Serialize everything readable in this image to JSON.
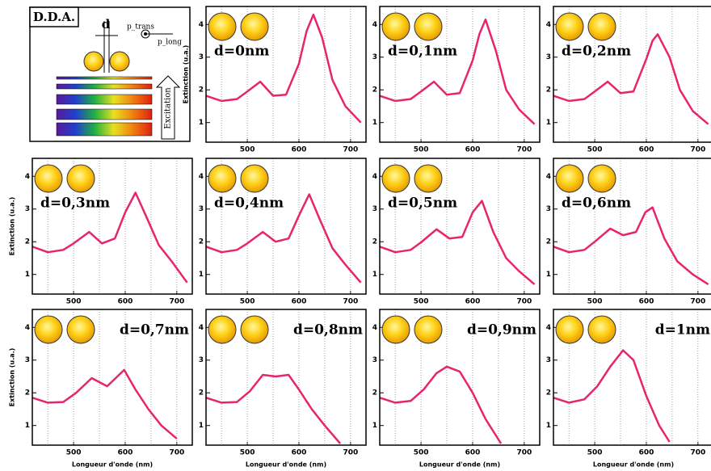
{
  "diagram": {
    "title": "D.D.A.",
    "gap_label": "d",
    "p_trans": "p_trans",
    "p_long": "p_long",
    "excitation": "Excitation"
  },
  "chart_data": [
    {
      "type": "line",
      "annotation": "d=0nm",
      "ylabel": "Extinction (u.a.)",
      "color": "#e8246e",
      "x": [
        420,
        450,
        480,
        500,
        525,
        550,
        575,
        600,
        615,
        628,
        645,
        665,
        690,
        720
      ],
      "values": [
        1.82,
        1.66,
        1.72,
        1.95,
        2.25,
        1.82,
        1.85,
        2.8,
        3.8,
        4.3,
        3.6,
        2.3,
        1.5,
        1.0
      ],
      "xlim": [
        420,
        730
      ],
      "ylim": [
        0.4,
        4.55
      ],
      "xticks": [
        500,
        600,
        700
      ],
      "yticks": [
        1,
        2,
        3,
        4
      ],
      "xgrid": [
        450,
        550,
        650
      ]
    },
    {
      "type": "line",
      "annotation": "d=0,1nm",
      "color": "#e8246e",
      "x": [
        420,
        450,
        480,
        500,
        525,
        550,
        575,
        600,
        613,
        625,
        645,
        665,
        690,
        720
      ],
      "values": [
        1.82,
        1.66,
        1.72,
        1.95,
        2.25,
        1.85,
        1.9,
        2.9,
        3.7,
        4.15,
        3.2,
        2.0,
        1.4,
        0.95
      ],
      "xlim": [
        420,
        730
      ],
      "ylim": [
        0.4,
        4.55
      ],
      "xticks": [
        500,
        600,
        700
      ],
      "yticks": [
        1,
        2,
        3,
        4
      ],
      "xgrid": [
        450,
        550,
        650
      ]
    },
    {
      "type": "line",
      "annotation": "d=0,2nm",
      "color": "#e8246e",
      "x": [
        420,
        450,
        480,
        500,
        525,
        550,
        575,
        600,
        612,
        622,
        645,
        665,
        690,
        720
      ],
      "values": [
        1.82,
        1.66,
        1.72,
        1.95,
        2.25,
        1.9,
        1.95,
        2.95,
        3.5,
        3.7,
        3.0,
        2.0,
        1.35,
        0.95
      ],
      "xlim": [
        420,
        730
      ],
      "ylim": [
        0.4,
        4.55
      ],
      "xticks": [
        500,
        600,
        700
      ],
      "yticks": [
        1,
        2,
        3,
        4
      ],
      "xgrid": [
        450,
        550,
        650
      ]
    },
    {
      "type": "line",
      "annotation": "d=0,3nm",
      "ylabel": "Extinction (u.a.)",
      "color": "#e8246e",
      "x": [
        420,
        450,
        480,
        500,
        530,
        555,
        580,
        600,
        620,
        640,
        665,
        690,
        720
      ],
      "values": [
        1.85,
        1.68,
        1.75,
        1.95,
        2.3,
        1.95,
        2.1,
        2.9,
        3.5,
        2.8,
        1.9,
        1.4,
        0.75
      ],
      "xlim": [
        420,
        730
      ],
      "ylim": [
        0.4,
        4.55
      ],
      "xticks": [
        500,
        600,
        700
      ],
      "yticks": [
        1,
        2,
        3,
        4
      ],
      "xgrid": [
        450,
        550,
        650
      ]
    },
    {
      "type": "line",
      "annotation": "d=0,4nm",
      "color": "#e8246e",
      "x": [
        420,
        450,
        480,
        500,
        530,
        555,
        580,
        600,
        620,
        640,
        665,
        690,
        720
      ],
      "values": [
        1.85,
        1.68,
        1.75,
        1.95,
        2.3,
        2.0,
        2.1,
        2.8,
        3.45,
        2.7,
        1.8,
        1.3,
        0.75
      ],
      "xlim": [
        420,
        730
      ],
      "ylim": [
        0.4,
        4.55
      ],
      "xticks": [
        500,
        600,
        700
      ],
      "yticks": [
        1,
        2,
        3,
        4
      ],
      "xgrid": [
        450,
        550,
        650
      ]
    },
    {
      "type": "line",
      "annotation": "d=0,5nm",
      "color": "#e8246e",
      "x": [
        420,
        450,
        480,
        500,
        530,
        555,
        580,
        600,
        618,
        640,
        665,
        690,
        720
      ],
      "values": [
        1.85,
        1.68,
        1.75,
        1.98,
        2.38,
        2.1,
        2.15,
        2.9,
        3.25,
        2.3,
        1.5,
        1.1,
        0.7
      ],
      "xlim": [
        420,
        730
      ],
      "ylim": [
        0.4,
        4.55
      ],
      "xticks": [
        500,
        600,
        700
      ],
      "yticks": [
        1,
        2,
        3,
        4
      ],
      "xgrid": [
        450,
        550,
        650
      ]
    },
    {
      "type": "line",
      "annotation": "d=0,6nm",
      "color": "#e8246e",
      "x": [
        420,
        450,
        480,
        500,
        530,
        555,
        580,
        598,
        612,
        635,
        660,
        690,
        720
      ],
      "values": [
        1.85,
        1.68,
        1.75,
        2.0,
        2.4,
        2.2,
        2.3,
        2.9,
        3.05,
        2.1,
        1.4,
        1.0,
        0.7
      ],
      "xlim": [
        420,
        730
      ],
      "ylim": [
        0.4,
        4.55
      ],
      "xticks": [
        500,
        600,
        700
      ],
      "yticks": [
        1,
        2,
        3,
        4
      ],
      "xgrid": [
        450,
        550,
        650
      ]
    },
    {
      "type": "line",
      "annotation": "d=0,7nm",
      "ylabel": "Extinction (u.a.)",
      "xlabel": "Longueur d'onde (nm)",
      "color": "#e8246e",
      "x": [
        420,
        450,
        480,
        505,
        535,
        565,
        598,
        620,
        645,
        670,
        700
      ],
      "values": [
        1.85,
        1.7,
        1.72,
        2.0,
        2.45,
        2.2,
        2.7,
        2.1,
        1.5,
        1.0,
        0.6
      ],
      "xlim": [
        420,
        730
      ],
      "ylim": [
        0.4,
        4.55
      ],
      "xticks": [
        500,
        600,
        700
      ],
      "yticks": [
        1,
        2,
        3,
        4
      ],
      "xgrid": [
        450,
        550,
        650
      ]
    },
    {
      "type": "line",
      "annotation": "d=0,8nm",
      "xlabel": "Longueur d'onde (nm)",
      "color": "#e8246e",
      "x": [
        420,
        450,
        480,
        505,
        530,
        555,
        580,
        600,
        625,
        650,
        680
      ],
      "values": [
        1.85,
        1.7,
        1.72,
        2.05,
        2.55,
        2.5,
        2.55,
        2.1,
        1.5,
        1.0,
        0.45
      ],
      "xlim": [
        420,
        730
      ],
      "ylim": [
        0.4,
        4.55
      ],
      "xticks": [
        500,
        600,
        700
      ],
      "yticks": [
        1,
        2,
        3,
        4
      ],
      "xgrid": [
        450,
        550,
        650
      ]
    },
    {
      "type": "line",
      "annotation": "d=0,9nm",
      "xlabel": "Longueur d'onde (nm)",
      "color": "#e8246e",
      "x": [
        420,
        450,
        480,
        505,
        530,
        550,
        575,
        600,
        625,
        655
      ],
      "values": [
        1.85,
        1.7,
        1.75,
        2.1,
        2.6,
        2.8,
        2.65,
        2.0,
        1.2,
        0.45
      ],
      "xlim": [
        420,
        730
      ],
      "ylim": [
        0.4,
        4.55
      ],
      "xticks": [
        500,
        600,
        700
      ],
      "yticks": [
        1,
        2,
        3,
        4
      ],
      "xgrid": [
        450,
        550,
        650
      ]
    },
    {
      "type": "line",
      "annotation": "d=1nm",
      "xlabel": "Longueur d'onde (nm)",
      "color": "#e8246e",
      "x": [
        420,
        450,
        480,
        505,
        530,
        555,
        575,
        600,
        625,
        645
      ],
      "values": [
        1.85,
        1.7,
        1.8,
        2.2,
        2.8,
        3.3,
        3.0,
        1.9,
        1.0,
        0.5
      ],
      "xlim": [
        420,
        730
      ],
      "ylim": [
        0.4,
        4.55
      ],
      "xticks": [
        500,
        600,
        700
      ],
      "yticks": [
        1,
        2,
        3,
        4
      ],
      "xgrid": [
        450,
        550,
        650
      ]
    }
  ]
}
